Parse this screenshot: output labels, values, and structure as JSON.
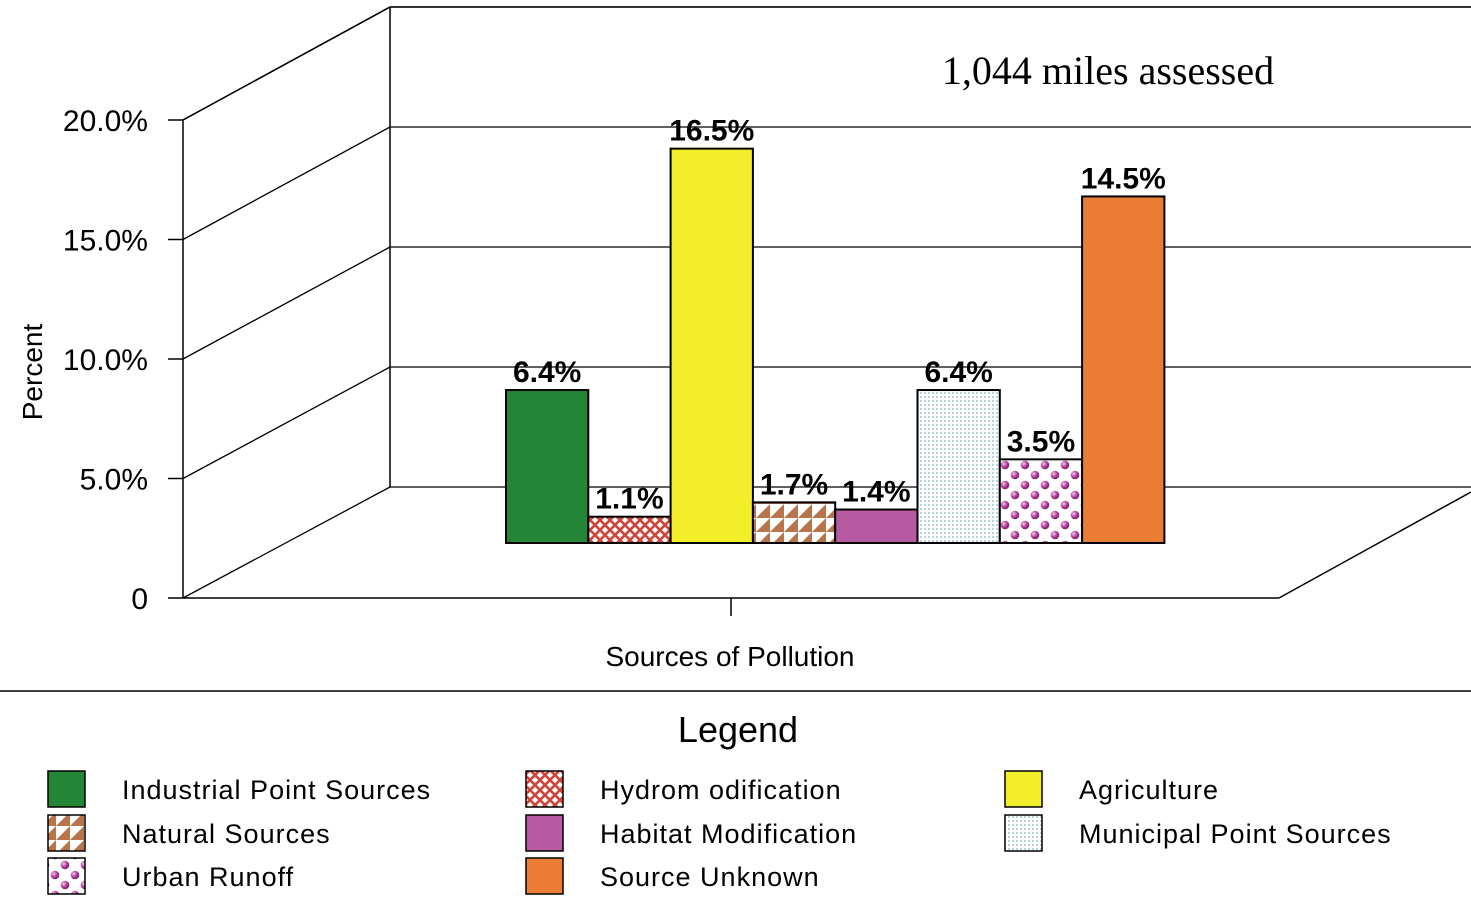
{
  "chart_data": {
    "type": "bar",
    "annotation": "1,044 miles assessed",
    "xlabel": "Sources of Pollution",
    "ylabel": "Percent",
    "ylim": [
      0,
      20
    ],
    "yticks": [
      {
        "value": 0,
        "label": "0"
      },
      {
        "value": 5,
        "label": "5.0%"
      },
      {
        "value": 10,
        "label": "10.0%"
      },
      {
        "value": 15,
        "label": "15.0%"
      },
      {
        "value": 20,
        "label": "20.0%"
      }
    ],
    "grid": true,
    "legend_title": "Legend",
    "legend_position": "bottom",
    "series": [
      {
        "name": "Industrial Point Sources",
        "value": 6.4,
        "label": "6.4%",
        "color": "#238636",
        "pattern": "solid"
      },
      {
        "name": "Hydromodification",
        "legend_label": "Hydrom odification",
        "value": 1.1,
        "label": "1.1%",
        "color": "#d0453a",
        "pattern": "crosshatch"
      },
      {
        "name": "Agriculture",
        "value": 16.5,
        "label": "16.5%",
        "color": "#f2ef2a",
        "pattern": "solid"
      },
      {
        "name": "Natural Sources",
        "value": 1.7,
        "label": "1.7%",
        "color": "#b8744a",
        "pattern": "triangles"
      },
      {
        "name": "Habitat Modification",
        "value": 1.4,
        "label": "1.4%",
        "color": "#b85aa2",
        "pattern": "solid"
      },
      {
        "name": "Municipal Point Sources",
        "value": 6.4,
        "label": "6.4%",
        "color": "#cfe1ea",
        "pattern": "dots"
      },
      {
        "name": "Urban Runoff",
        "value": 3.5,
        "label": "3.5%",
        "color": "#b23d98",
        "pattern": "spheres"
      },
      {
        "name": "Source Unknown",
        "value": 14.5,
        "label": "14.5%",
        "color": "#ea7d33",
        "pattern": "solid"
      }
    ]
  }
}
